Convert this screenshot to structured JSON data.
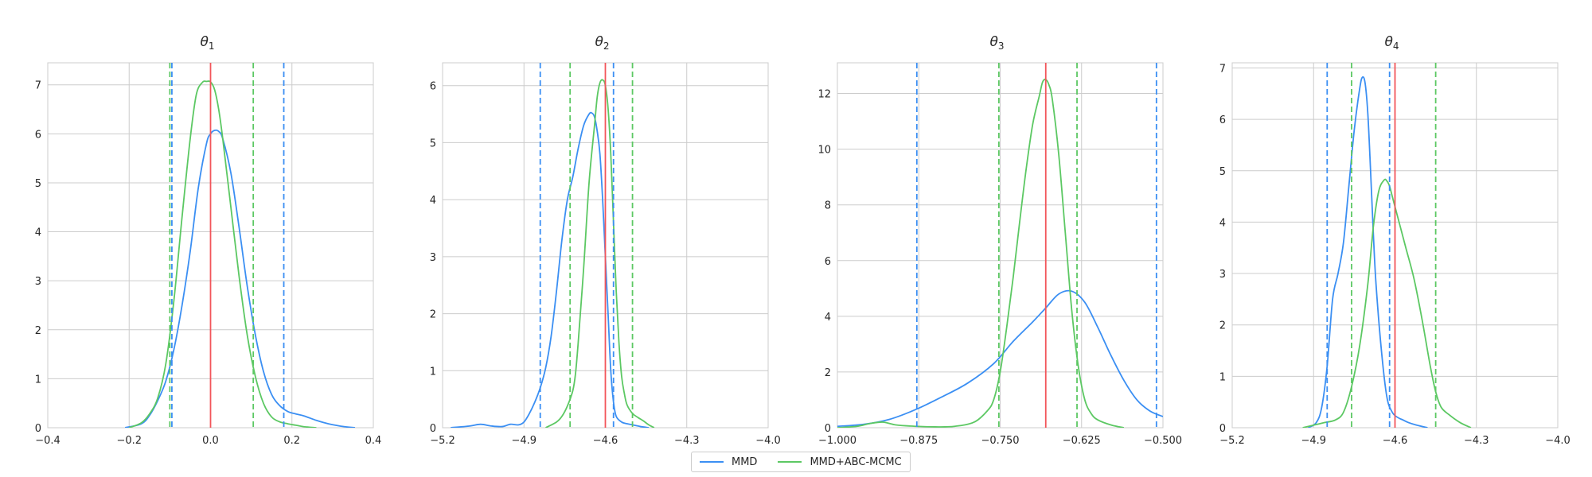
{
  "series_styles": [
    {
      "name": "MMD",
      "color": "#3b8ff3"
    },
    {
      "name": "MMD+ABC-MCMC",
      "color": "#5cc863"
    }
  ],
  "true_value_color": "#f2555a",
  "grid": true,
  "legend_placement": "bottom-center",
  "chart_data": [
    {
      "type": "line",
      "title_base": "θ",
      "title_sub": "1",
      "xlim": [
        -0.4,
        0.4
      ],
      "ylim": [
        0,
        7.45
      ],
      "xticks": [
        -0.4,
        -0.2,
        0.0,
        0.2,
        0.4
      ],
      "xtick_labels": [
        "−0.4",
        "−0.2",
        "0.0",
        "0.2",
        "0.4"
      ],
      "yticks": [
        0,
        1,
        2,
        3,
        4,
        5,
        6,
        7
      ],
      "ytick_labels": [
        "0",
        "1",
        "2",
        "3",
        "4",
        "5",
        "6",
        "7"
      ],
      "true_value": 0.0,
      "series": [
        {
          "name": "MMD",
          "x": [
            -0.21,
            -0.17,
            -0.15,
            -0.13,
            -0.11,
            -0.09,
            -0.07,
            -0.05,
            -0.03,
            -0.01,
            0.0,
            0.01,
            0.02,
            0.03,
            0.05,
            0.07,
            0.09,
            0.11,
            0.13,
            0.15,
            0.17,
            0.19,
            0.21,
            0.23,
            0.26,
            0.29,
            0.33,
            0.355
          ],
          "y": [
            0,
            0.08,
            0.25,
            0.55,
            0.95,
            1.6,
            2.5,
            3.6,
            4.9,
            5.8,
            6.0,
            6.07,
            6.05,
            5.9,
            5.2,
            4.1,
            2.9,
            1.9,
            1.15,
            0.68,
            0.45,
            0.33,
            0.28,
            0.24,
            0.15,
            0.08,
            0.02,
            0
          ]
        },
        {
          "name": "MMD+ABC-MCMC",
          "x": [
            -0.2,
            -0.17,
            -0.15,
            -0.13,
            -0.11,
            -0.09,
            -0.07,
            -0.05,
            -0.035,
            -0.02,
            -0.01,
            0.0,
            0.01,
            0.02,
            0.03,
            0.05,
            0.07,
            0.09,
            0.11,
            0.13,
            0.15,
            0.17,
            0.19,
            0.21,
            0.23,
            0.26
          ],
          "y": [
            0,
            0.1,
            0.28,
            0.6,
            1.3,
            2.6,
            4.3,
            5.9,
            6.8,
            7.05,
            7.07,
            7.06,
            6.9,
            6.5,
            5.9,
            4.5,
            3.1,
            1.9,
            1.05,
            0.5,
            0.22,
            0.12,
            0.08,
            0.05,
            0.02,
            0
          ]
        }
      ],
      "intervals": [
        {
          "series": "MMD",
          "values": [
            -0.095,
            0.18
          ]
        },
        {
          "series": "MMD+ABC-MCMC",
          "values": [
            -0.1,
            0.105
          ]
        }
      ]
    },
    {
      "type": "line",
      "title_base": "θ",
      "title_sub": "2",
      "xlim": [
        -5.2,
        -4.0
      ],
      "ylim": [
        0,
        6.4
      ],
      "xticks": [
        -5.2,
        -4.9,
        -4.6,
        -4.3,
        -4.0
      ],
      "xtick_labels": [
        "−5.2",
        "−4.9",
        "−4.6",
        "−4.3",
        "−4.0"
      ],
      "yticks": [
        0,
        1,
        2,
        3,
        4,
        5,
        6
      ],
      "ytick_labels": [
        "0",
        "1",
        "2",
        "3",
        "4",
        "5",
        "6"
      ],
      "true_value": -4.6,
      "series": [
        {
          "name": "MMD",
          "x": [
            -5.17,
            -5.1,
            -5.06,
            -5.02,
            -4.98,
            -4.95,
            -4.92,
            -4.9,
            -4.88,
            -4.86,
            -4.84,
            -4.82,
            -4.8,
            -4.78,
            -4.76,
            -4.74,
            -4.72,
            -4.7,
            -4.68,
            -4.66,
            -4.65,
            -4.64,
            -4.63,
            -4.62,
            -4.61,
            -4.6,
            -4.59,
            -4.58,
            -4.57,
            -4.56,
            -4.54,
            -4.52,
            -4.5,
            -4.47,
            -4.44
          ],
          "y": [
            0,
            0.03,
            0.06,
            0.03,
            0.02,
            0.06,
            0.05,
            0.1,
            0.25,
            0.45,
            0.7,
            1.05,
            1.6,
            2.4,
            3.3,
            4.0,
            4.4,
            4.9,
            5.3,
            5.5,
            5.52,
            5.45,
            5.2,
            4.8,
            4.0,
            3.0,
            2.0,
            1.0,
            0.45,
            0.2,
            0.1,
            0.07,
            0.05,
            0.02,
            0
          ]
        },
        {
          "name": "MMD+ABC-MCMC",
          "x": [
            -4.82,
            -4.78,
            -4.76,
            -4.74,
            -4.72,
            -4.71,
            -4.7,
            -4.68,
            -4.66,
            -4.64,
            -4.63,
            -4.62,
            -4.61,
            -4.6,
            -4.59,
            -4.58,
            -4.57,
            -4.56,
            -4.55,
            -4.54,
            -4.53,
            -4.52,
            -4.5,
            -4.48,
            -4.46,
            -4.44,
            -4.42
          ],
          "y": [
            0,
            0.1,
            0.2,
            0.38,
            0.65,
            0.95,
            1.5,
            2.8,
            4.3,
            5.3,
            5.8,
            6.05,
            6.1,
            6.0,
            5.6,
            4.8,
            3.6,
            2.4,
            1.5,
            0.9,
            0.6,
            0.4,
            0.25,
            0.18,
            0.12,
            0.05,
            0
          ]
        }
      ],
      "intervals": [
        {
          "series": "MMD",
          "values": [
            -4.84,
            -4.57
          ]
        },
        {
          "series": "MMD+ABC-MCMC",
          "values": [
            -4.73,
            -4.5
          ]
        }
      ]
    },
    {
      "type": "line",
      "title_base": "θ",
      "title_sub": "3",
      "xlim": [
        -1.0,
        -0.5
      ],
      "ylim": [
        0,
        13.1
      ],
      "xticks": [
        -1.0,
        -0.875,
        -0.75,
        -0.625,
        -0.5
      ],
      "xtick_labels": [
        "−1.000",
        "−0.875",
        "−0.750",
        "−0.625",
        "−0.500"
      ],
      "yticks": [
        0,
        2,
        4,
        6,
        8,
        10,
        12
      ],
      "ytick_labels": [
        "0",
        "2",
        "4",
        "6",
        "8",
        "10",
        "12"
      ],
      "true_value": -0.68,
      "series": [
        {
          "name": "MMD",
          "x": [
            -1.0,
            -0.96,
            -0.92,
            -0.88,
            -0.84,
            -0.8,
            -0.76,
            -0.73,
            -0.7,
            -0.68,
            -0.66,
            -0.64,
            -0.62,
            -0.6,
            -0.58,
            -0.56,
            -0.54,
            -0.52,
            -0.5
          ],
          "y": [
            0.05,
            0.12,
            0.3,
            0.65,
            1.1,
            1.6,
            2.3,
            3.1,
            3.8,
            4.3,
            4.8,
            4.9,
            4.5,
            3.6,
            2.6,
            1.7,
            1.0,
            0.6,
            0.4
          ]
        },
        {
          "name": "MMD+ABC-MCMC",
          "x": [
            -1.0,
            -0.97,
            -0.95,
            -0.93,
            -0.91,
            -0.88,
            -0.85,
            -0.82,
            -0.79,
            -0.77,
            -0.76,
            -0.75,
            -0.74,
            -0.73,
            -0.72,
            -0.71,
            -0.7,
            -0.69,
            -0.685,
            -0.68,
            -0.675,
            -0.67,
            -0.66,
            -0.65,
            -0.64,
            -0.63,
            -0.62,
            -0.61,
            -0.6,
            -0.58,
            -0.56
          ],
          "y": [
            0,
            0.05,
            0.15,
            0.2,
            0.1,
            0.05,
            0.03,
            0.05,
            0.2,
            0.6,
            1.0,
            2.0,
            3.6,
            5.4,
            7.4,
            9.3,
            10.9,
            11.9,
            12.4,
            12.5,
            12.3,
            11.8,
            9.8,
            7.0,
            4.2,
            2.2,
            1.0,
            0.5,
            0.28,
            0.1,
            0
          ]
        }
      ],
      "intervals": [
        {
          "series": "MMD",
          "values": [
            -0.878,
            -0.51
          ]
        },
        {
          "series": "MMD+ABC-MCMC",
          "values": [
            -0.752,
            -0.632
          ]
        }
      ]
    },
    {
      "type": "line",
      "title_base": "θ",
      "title_sub": "4",
      "xlim": [
        -5.2,
        -4.0
      ],
      "ylim": [
        0,
        7.1
      ],
      "xticks": [
        -5.2,
        -4.9,
        -4.6,
        -4.3,
        -4.0
      ],
      "xtick_labels": [
        "−5.2",
        "−4.9",
        "−4.6",
        "−4.3",
        "−4.0"
      ],
      "yticks": [
        0,
        1,
        2,
        3,
        4,
        5,
        6,
        7
      ],
      "ytick_labels": [
        "0",
        "1",
        "2",
        "3",
        "4",
        "5",
        "6",
        "7"
      ],
      "true_value": -4.6,
      "series": [
        {
          "name": "MMD",
          "x": [
            -4.92,
            -4.89,
            -4.87,
            -4.85,
            -4.83,
            -4.81,
            -4.79,
            -4.77,
            -4.75,
            -4.73,
            -4.72,
            -4.71,
            -4.7,
            -4.69,
            -4.68,
            -4.67,
            -4.65,
            -4.63,
            -4.61,
            -4.59,
            -4.57,
            -4.55,
            -4.52,
            -4.48
          ],
          "y": [
            0,
            0.1,
            0.4,
            1.2,
            2.5,
            3.0,
            3.6,
            4.7,
            5.8,
            6.6,
            6.82,
            6.7,
            6.1,
            5.0,
            3.8,
            2.8,
            1.5,
            0.6,
            0.3,
            0.2,
            0.15,
            0.1,
            0.05,
            0
          ]
        },
        {
          "name": "MMD+ABC-MCMC",
          "x": [
            -4.94,
            -4.9,
            -4.86,
            -4.82,
            -4.79,
            -4.76,
            -4.73,
            -4.7,
            -4.68,
            -4.66,
            -4.64,
            -4.63,
            -4.62,
            -4.61,
            -4.59,
            -4.56,
            -4.53,
            -4.5,
            -4.47,
            -4.45,
            -4.43,
            -4.4,
            -4.36,
            -4.32
          ],
          "y": [
            0,
            0.05,
            0.1,
            0.15,
            0.3,
            0.8,
            1.6,
            2.8,
            3.9,
            4.6,
            4.82,
            4.8,
            4.7,
            4.5,
            4.1,
            3.5,
            2.9,
            2.1,
            1.2,
            0.7,
            0.4,
            0.25,
            0.1,
            0
          ]
        }
      ],
      "intervals": [
        {
          "series": "MMD",
          "values": [
            -4.85,
            -4.62
          ]
        },
        {
          "series": "MMD+ABC-MCMC",
          "values": [
            -4.76,
            -4.45
          ]
        }
      ]
    }
  ]
}
